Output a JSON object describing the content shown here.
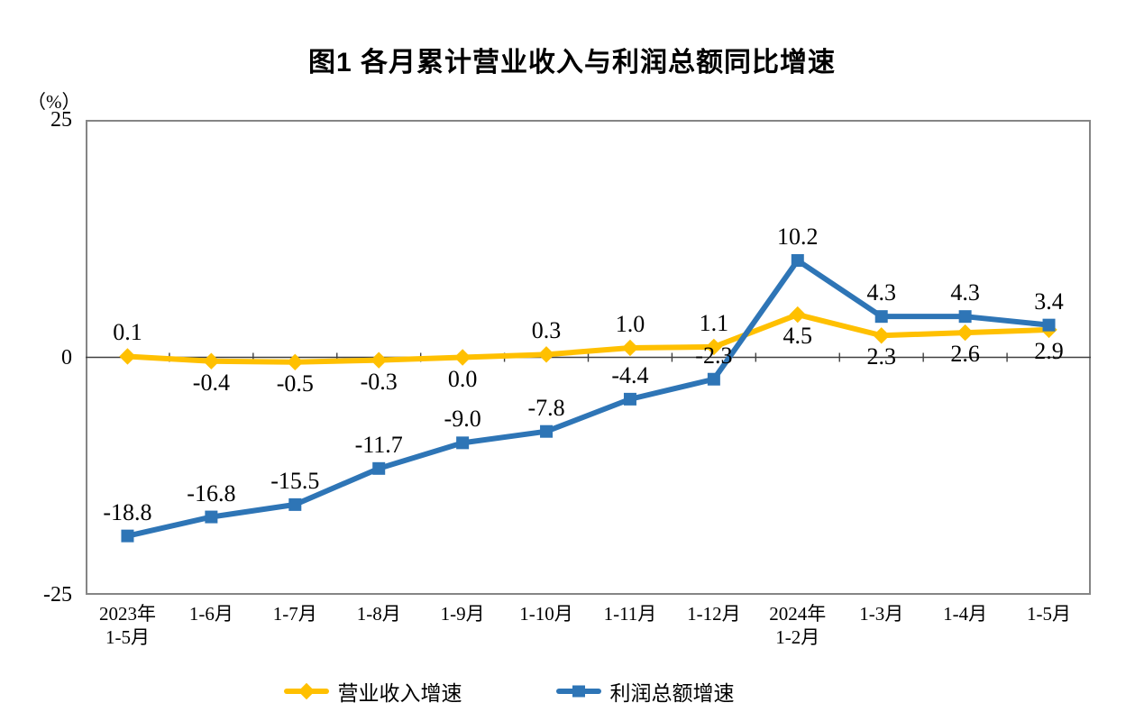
{
  "title": "图1  各月累计营业收入与利润总额同比增速",
  "y_axis": {
    "unit": "（%）",
    "ticks": [
      "25",
      "0",
      "-25"
    ],
    "axis_color": "#404040",
    "border_color": "#858585"
  },
  "legend": {
    "revenue_label": "营业收入增速",
    "profit_label": "利润总额增速"
  },
  "chart_data": {
    "type": "line",
    "title": "图1  各月累计营业收入与利润总额同比增速",
    "ylabel": "（%）",
    "ylim": [
      -25,
      25
    ],
    "grid": false,
    "legend_position": "bottom",
    "categories": [
      [
        "2023年",
        "1-5月"
      ],
      [
        "1-6月"
      ],
      [
        "1-7月"
      ],
      [
        "1-8月"
      ],
      [
        "1-9月"
      ],
      [
        "1-10月"
      ],
      [
        "1-11月"
      ],
      [
        "1-12月"
      ],
      [
        "2024年",
        "1-2月"
      ],
      [
        "1-3月"
      ],
      [
        "1-4月"
      ],
      [
        "1-5月"
      ]
    ],
    "series": [
      {
        "id": "revenue",
        "name": "营业收入增速",
        "color": "#FFC000",
        "marker": "diamond",
        "values": [
          0.1,
          -0.4,
          -0.5,
          -0.3,
          0.0,
          0.3,
          1.0,
          1.1,
          4.5,
          2.3,
          2.6,
          2.9
        ],
        "label_positions": [
          "above",
          "below",
          "below",
          "below",
          "below",
          "above",
          "above",
          "above",
          "below",
          "below",
          "below",
          "below"
        ]
      },
      {
        "id": "profit",
        "name": "利润总额增速",
        "color": "#2E75B6",
        "marker": "square",
        "values": [
          -18.8,
          -16.8,
          -15.5,
          -11.7,
          -9.0,
          -7.8,
          -4.4,
          -2.3,
          10.2,
          4.3,
          4.3,
          3.4
        ],
        "label_positions": [
          "above",
          "above",
          "above",
          "above",
          "above",
          "above",
          "above",
          "above",
          "above",
          "above",
          "above",
          "above"
        ]
      }
    ]
  }
}
